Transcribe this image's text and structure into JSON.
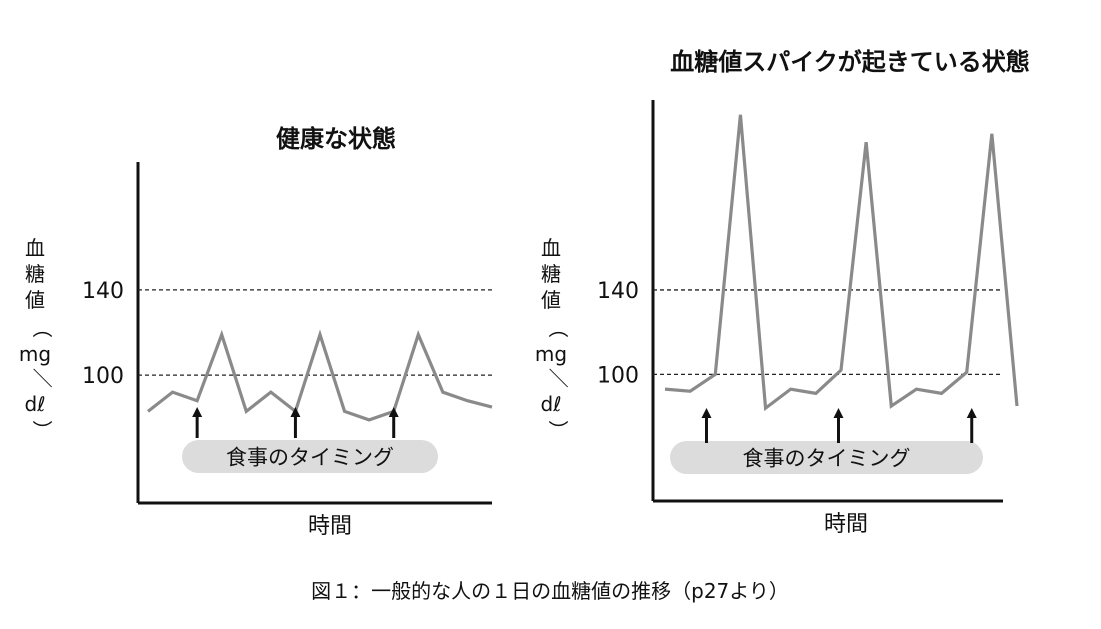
{
  "caption": "図１：一般的な人の１日の血糖値の推移（p27より）",
  "colors": {
    "line": "#8a8a8a",
    "axis": "#111111",
    "pill": "#dcdcdc"
  },
  "chart_data": [
    {
      "type": "line",
      "title": "健康な状態",
      "xlabel": "時間",
      "ylabel": "血糖値（mg／dℓ）",
      "ylabel_chars": [
        "血",
        "糖",
        "値",
        "（",
        "mg",
        "／",
        "dℓ",
        "）"
      ],
      "yticks": [
        100,
        140
      ],
      "reference_lines": [
        100,
        140
      ],
      "ylim": [
        40,
        200
      ],
      "xlim": [
        0,
        14
      ],
      "x": [
        0,
        1,
        2,
        3,
        4,
        5,
        6,
        7,
        8,
        9,
        10,
        11,
        12,
        13,
        14
      ],
      "values": [
        83,
        92,
        88,
        119,
        83,
        92,
        83,
        119,
        83,
        79,
        83,
        119,
        92,
        88,
        85
      ],
      "meal_x": [
        2,
        6,
        10
      ],
      "meal_label": "食事のタイミング"
    },
    {
      "type": "line",
      "title": "血糖値スパイクが起きている状態",
      "xlabel": "時間",
      "ylabel": "血糖値（mg／dℓ）",
      "ylabel_chars": [
        "血",
        "糖",
        "値",
        "（",
        "mg",
        "／",
        "dℓ",
        "）"
      ],
      "yticks": [
        100,
        140
      ],
      "reference_lines": [
        100,
        140
      ],
      "ylim": [
        40,
        230
      ],
      "xlim": [
        0,
        14
      ],
      "x": [
        0,
        1,
        2,
        3,
        4,
        5,
        6,
        7,
        8,
        9,
        10,
        11,
        12,
        13,
        14
      ],
      "values": [
        93,
        92,
        100,
        223,
        84,
        93,
        91,
        102,
        210,
        85,
        93,
        91,
        101,
        214,
        85
      ],
      "meal_x": [
        1.65,
        6.9,
        12.2
      ],
      "meal_label": "食事のタイミング"
    }
  ]
}
